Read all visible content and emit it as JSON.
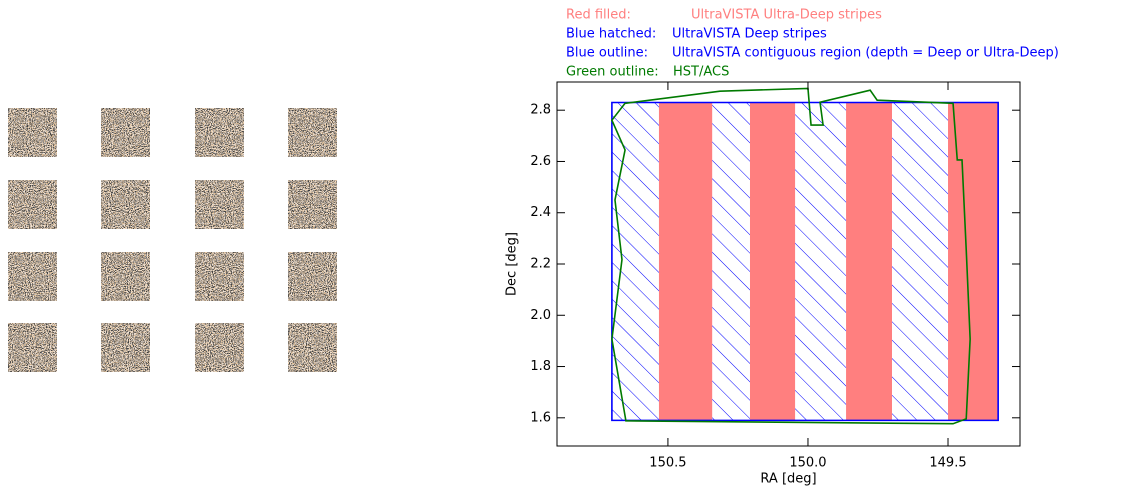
{
  "chart_data": {
    "type": "region",
    "xlabel": "RA [deg]",
    "ylabel": "Dec [deg]",
    "xlim": [
      150.896,
      149.243
    ],
    "ylim": [
      1.49,
      2.91
    ],
    "xticks": [
      150.5,
      {
        "value": 150.0,
        "label": "150.0"
      },
      149.5
    ],
    "yticks": [
      2.8,
      2.6,
      2.4,
      2.2,
      {
        "value": 2.0,
        "label": "2.0"
      },
      1.8,
      1.6
    ],
    "series": [
      {
        "key": "Red filled:",
        "name": "UltraVISTA Ultra-Deep stripes",
        "color": "#ff7f7f",
        "style": "filled",
        "yrange": [
          1.59,
          2.83
        ],
        "ranges": [
          [
            150.532,
            150.342
          ],
          [
            150.207,
            150.046
          ],
          [
            149.864,
            149.7
          ],
          [
            149.5,
            149.321
          ]
        ]
      },
      {
        "key": "Blue hatched:",
        "name": "UltraVISTA Deep stripes",
        "color": "#0000ff",
        "style": "hatched",
        "yrange": [
          1.59,
          2.83
        ],
        "ranges": [
          [
            150.7,
            150.532
          ],
          [
            150.342,
            150.207
          ],
          [
            150.046,
            149.864
          ],
          [
            149.7,
            149.5
          ]
        ]
      },
      {
        "key": "Blue outline:",
        "name": "UltraVISTA contiguous region (depth = Deep or Ultra-Deep)",
        "color": "#0000ff",
        "style": "outline",
        "x": [
          150.7,
          149.321,
          149.321,
          150.7
        ],
        "y": [
          2.83,
          2.83,
          1.59,
          1.59
        ]
      },
      {
        "key": "Green outline:",
        "name": "HST/ACS",
        "color": "#007a00",
        "style": "outline",
        "x": [
          150.653,
          150.314,
          150.0,
          149.989,
          149.946,
          149.957,
          149.778,
          149.753,
          149.482,
          149.467,
          149.45,
          149.435,
          149.421,
          149.435,
          149.482,
          150.65,
          150.7,
          150.664,
          150.689,
          150.653,
          150.7
        ],
        "y": [
          2.827,
          2.874,
          2.885,
          2.742,
          2.742,
          2.831,
          2.878,
          2.839,
          2.827,
          2.606,
          2.606,
          2.256,
          1.907,
          1.596,
          1.577,
          1.588,
          1.907,
          2.217,
          2.45,
          2.645,
          2.761
        ]
      }
    ]
  }
}
